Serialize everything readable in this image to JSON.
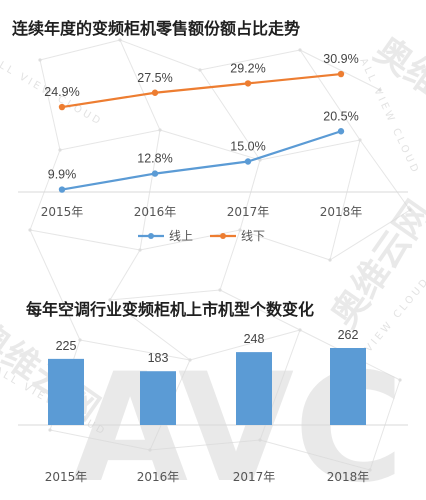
{
  "watermark": {
    "brand": "奥维云网",
    "latin": "ALL VIEW CLOUD",
    "logo": "AVC",
    "color": "#dcdcdc"
  },
  "chart_data": [
    {
      "type": "line",
      "title": "连续年度的变频柜机零售额份额占比走势",
      "xlabel": "",
      "ylabel": "",
      "unit": "%",
      "categories": [
        "2015年",
        "2016年",
        "2017年",
        "2018年"
      ],
      "series": [
        {
          "name": "线上",
          "values": [
            9.9,
            12.8,
            15.0,
            20.5
          ],
          "labels": [
            "9.9%",
            "12.8%",
            "15.0%",
            "20.5%"
          ],
          "color": "#5b9bd5"
        },
        {
          "name": "线下",
          "values": [
            24.9,
            27.5,
            29.2,
            30.9
          ],
          "labels": [
            "24.9%",
            "27.5%",
            "29.2%",
            "30.9%"
          ],
          "color": "#ed7d31"
        }
      ],
      "ylim": [
        0,
        36
      ],
      "grid": false,
      "legend": "bottom"
    },
    {
      "type": "bar",
      "title": "每年空调行业变频柜机上市机型个数变化",
      "xlabel": "",
      "ylabel": "",
      "categories": [
        "2015年",
        "2016年",
        "2017年",
        "2018年"
      ],
      "values": [
        225,
        183,
        248,
        262
      ],
      "labels": [
        "225",
        "183",
        "248",
        "262"
      ],
      "color": "#5b9bd5",
      "ylim": [
        0,
        300
      ],
      "grid": false,
      "legend": "none"
    }
  ]
}
